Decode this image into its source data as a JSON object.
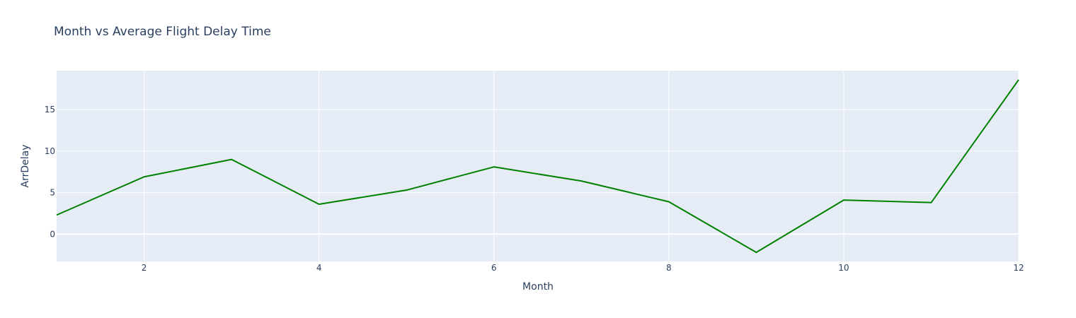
{
  "chart_data": {
    "type": "line",
    "title": "Month vs Average Flight Delay Time",
    "xlabel": "Month",
    "ylabel": "ArrDelay",
    "x": [
      1,
      2,
      3,
      4,
      5,
      6,
      7,
      8,
      9,
      10,
      11,
      12
    ],
    "series": [
      {
        "values": [
          2.3,
          6.9,
          9.0,
          3.6,
          5.3,
          8.1,
          6.4,
          3.9,
          -2.2,
          4.1,
          3.8,
          18.6
        ]
      }
    ],
    "xlim": [
      1,
      12
    ],
    "ylim": [
      -3.3,
      19.7
    ],
    "x_ticks": [
      2,
      4,
      6,
      8,
      10,
      12
    ],
    "y_ticks": [
      0,
      5,
      10,
      15
    ],
    "grid": true,
    "colors": {
      "line": "#008000",
      "plot_background": "#e5ecf6",
      "grid": "#ffffff",
      "text": "#2a3f5f"
    }
  }
}
